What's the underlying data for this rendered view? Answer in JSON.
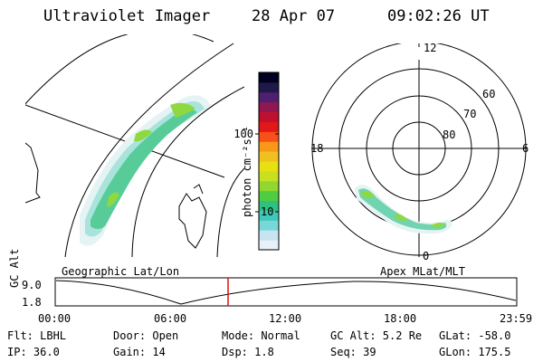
{
  "header": {
    "title": "Ultraviolet Imager",
    "date": "28 Apr 07",
    "time": "09:02:26 UT"
  },
  "geo_panel": {
    "label": "Geographic Lat/Lon"
  },
  "apex_panel": {
    "label": "Apex MLat/MLT",
    "mlt_labels": [
      "12",
      "18",
      "6",
      "0"
    ],
    "mlat_labels": [
      "60",
      "70",
      "80"
    ]
  },
  "colorbar": {
    "unit_label": "photon cm⁻²s⁻¹",
    "ticks": [
      "100",
      "10"
    ],
    "colors": [
      "#e8f0f8",
      "#c8e4f0",
      "#78d8d8",
      "#40c8b8",
      "#30c080",
      "#50cc40",
      "#90d830",
      "#c8e020",
      "#e8e010",
      "#f0c020",
      "#f89818",
      "#f85018",
      "#e01818",
      "#c01030",
      "#901850",
      "#502070",
      "#201848",
      "#000020"
    ]
  },
  "altitude_plot": {
    "ylabel": "GC Alt",
    "yticks": [
      "9.0",
      "1.8"
    ],
    "xticks": [
      "00:00",
      "06:00",
      "12:00",
      "18:00",
      "23:59"
    ]
  },
  "footer": {
    "row1": {
      "flt": "Flt: LBHL",
      "door": "Door: Open",
      "mode": "Mode: Normal",
      "gcalt": "GC Alt: 5.2 Re",
      "glat": "GLat: -58.0"
    },
    "row2": {
      "ip": "IP: 36.0",
      "gain": "Gain: 14",
      "dsp": "Dsp:   1.8",
      "seq": "Seq: 39",
      "glon": "GLon: 175.5"
    }
  }
}
